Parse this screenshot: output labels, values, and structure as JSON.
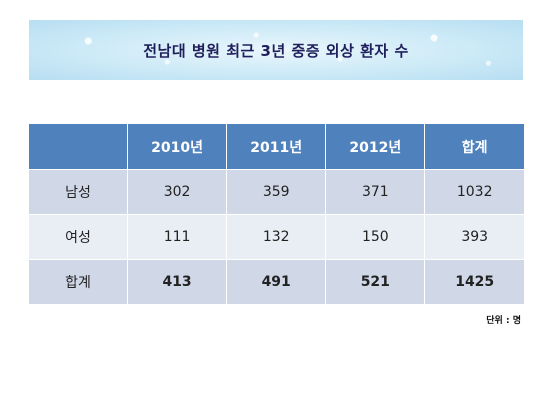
{
  "title": "전남대 병원 최근 3년 중증 외상 환자 수",
  "table": {
    "headers": [
      "",
      "2010년",
      "2011년",
      "2012년",
      "합계"
    ],
    "rows": [
      {
        "label": "남성",
        "values": [
          "302",
          "359",
          "371",
          "1032"
        ]
      },
      {
        "label": "여성",
        "values": [
          "111",
          "132",
          "150",
          "393"
        ]
      },
      {
        "label": "합계",
        "values": [
          "413",
          "491",
          "521",
          "1425"
        ]
      }
    ]
  },
  "unit_note": "단위 : 명",
  "colors": {
    "header_bg": "#4f81bd",
    "row_dark": "#d0d8e8",
    "row_light": "#e9edf4",
    "title_color": "#1f1f5c"
  }
}
